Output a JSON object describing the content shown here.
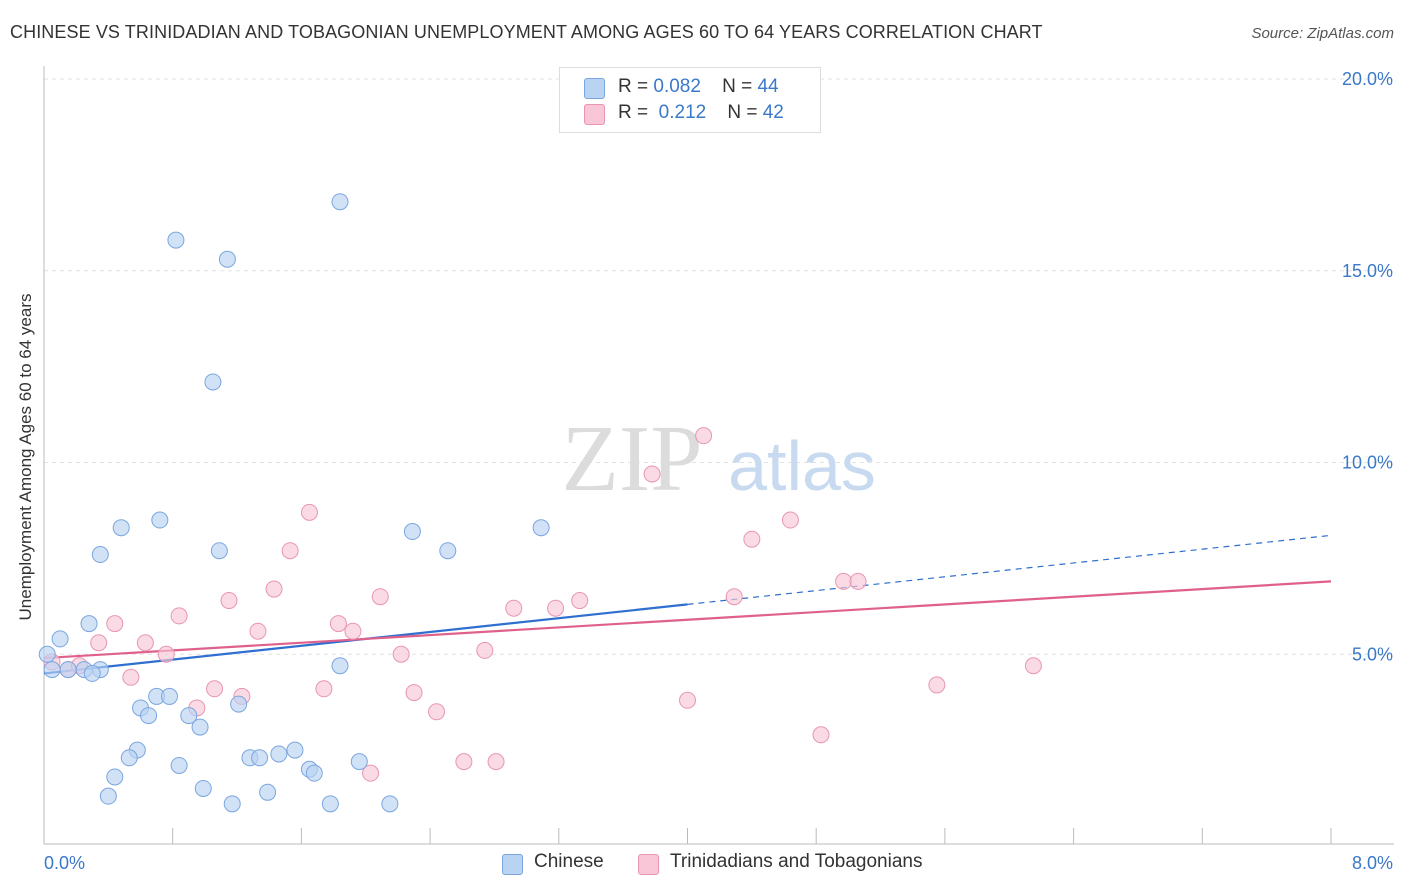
{
  "header": {
    "title": "CHINESE VS TRINIDADIAN AND TOBAGONIAN UNEMPLOYMENT AMONG AGES 60 TO 64 YEARS CORRELATION CHART",
    "source": "Source: ZipAtlas.com"
  },
  "watermark": {
    "zip": "ZIP",
    "atlas": "atlas"
  },
  "legend_top": {
    "rows": [
      {
        "r_label": "R =",
        "r_value": "0.082",
        "n_label": "N =",
        "n_value": "44"
      },
      {
        "r_label": "R =",
        "r_value": "0.212",
        "n_label": "N =",
        "n_value": "42"
      }
    ]
  },
  "legend_bottom": {
    "items": [
      "Chinese",
      "Trinidadians and Tobagonians"
    ]
  },
  "colors": {
    "chinese_fill": "#b9d3f2",
    "chinese_stroke": "#7aa6de",
    "chinese_line": "#2f6fcf",
    "trin_fill": "#f8c6d6",
    "trin_stroke": "#e896b2",
    "trin_line": "#e0608c",
    "axis_text": "#3a78c8",
    "grid": "#e2e2e2"
  },
  "chart_data": {
    "type": "scatter",
    "title": "CHINESE VS TRINIDADIAN AND TOBAGONIAN UNEMPLOYMENT AMONG AGES 60 TO 64 YEARS CORRELATION CHART",
    "xlabel": "",
    "ylabel": "Unemployment Among Ages 60 to 64 years",
    "xlim": [
      0,
      8
    ],
    "ylim": [
      0,
      20
    ],
    "x_tick_labels": [
      "0.0%",
      "8.0%"
    ],
    "y_ticks": [
      5,
      10,
      15,
      20
    ],
    "y_tick_labels": [
      "5.0%",
      "10.0%",
      "15.0%",
      "20.0%"
    ],
    "grid": true,
    "legend": "top-center",
    "series": [
      {
        "name": "Chinese",
        "points": [
          [
            0.02,
            5.0
          ],
          [
            0.1,
            5.4
          ],
          [
            0.15,
            4.6
          ],
          [
            0.25,
            4.6
          ],
          [
            0.35,
            4.6
          ],
          [
            0.3,
            4.5
          ],
          [
            0.28,
            5.8
          ],
          [
            0.35,
            7.6
          ],
          [
            0.48,
            8.3
          ],
          [
            0.72,
            8.5
          ],
          [
            0.82,
            15.8
          ],
          [
            1.14,
            15.3
          ],
          [
            1.05,
            12.1
          ],
          [
            1.09,
            7.7
          ],
          [
            1.84,
            16.8
          ],
          [
            2.29,
            8.2
          ],
          [
            2.51,
            7.7
          ],
          [
            3.09,
            8.3
          ],
          [
            1.84,
            4.7
          ],
          [
            0.7,
            3.9
          ],
          [
            0.78,
            3.9
          ],
          [
            0.6,
            3.6
          ],
          [
            0.65,
            3.4
          ],
          [
            0.9,
            3.4
          ],
          [
            0.97,
            3.1
          ],
          [
            1.21,
            3.7
          ],
          [
            0.58,
            2.5
          ],
          [
            0.53,
            2.3
          ],
          [
            0.84,
            2.1
          ],
          [
            1.28,
            2.3
          ],
          [
            1.34,
            2.3
          ],
          [
            1.46,
            2.4
          ],
          [
            1.56,
            2.5
          ],
          [
            1.65,
            2.0
          ],
          [
            1.68,
            1.9
          ],
          [
            1.96,
            2.2
          ],
          [
            0.44,
            1.8
          ],
          [
            0.4,
            1.3
          ],
          [
            0.99,
            1.5
          ],
          [
            1.17,
            1.1
          ],
          [
            1.39,
            1.4
          ],
          [
            1.78,
            1.1
          ],
          [
            2.15,
            1.1
          ],
          [
            0.05,
            4.6
          ]
        ],
        "trend": {
          "x": [
            0,
            4.0
          ],
          "y": [
            4.5,
            6.3
          ],
          "dashed_extension": {
            "x": [
              4.0,
              8.0
            ],
            "y": [
              6.3,
              8.1
            ]
          }
        }
      },
      {
        "name": "Trinidadians and Tobagonians",
        "points": [
          [
            0.05,
            4.8
          ],
          [
            0.15,
            4.6
          ],
          [
            0.22,
            4.7
          ],
          [
            0.34,
            5.3
          ],
          [
            0.44,
            5.8
          ],
          [
            0.54,
            4.4
          ],
          [
            0.63,
            5.3
          ],
          [
            0.76,
            5.0
          ],
          [
            0.84,
            6.0
          ],
          [
            0.95,
            3.6
          ],
          [
            1.06,
            4.1
          ],
          [
            1.15,
            6.4
          ],
          [
            1.23,
            3.9
          ],
          [
            1.33,
            5.6
          ],
          [
            1.43,
            6.7
          ],
          [
            1.53,
            7.7
          ],
          [
            1.65,
            8.7
          ],
          [
            1.74,
            4.1
          ],
          [
            1.83,
            5.8
          ],
          [
            1.92,
            5.6
          ],
          [
            2.03,
            1.9
          ],
          [
            2.09,
            6.5
          ],
          [
            2.22,
            5.0
          ],
          [
            2.3,
            4.0
          ],
          [
            2.44,
            3.5
          ],
          [
            2.61,
            2.2
          ],
          [
            2.74,
            5.1
          ],
          [
            2.81,
            2.2
          ],
          [
            2.92,
            6.2
          ],
          [
            3.18,
            6.2
          ],
          [
            3.33,
            6.4
          ],
          [
            3.78,
            9.7
          ],
          [
            4.0,
            3.8
          ],
          [
            4.1,
            10.7
          ],
          [
            4.29,
            6.5
          ],
          [
            4.4,
            8.0
          ],
          [
            4.64,
            8.5
          ],
          [
            4.83,
            2.9
          ],
          [
            4.97,
            6.9
          ],
          [
            5.06,
            6.9
          ],
          [
            5.55,
            4.2
          ],
          [
            6.15,
            4.7
          ]
        ],
        "trend": {
          "x": [
            0,
            8.0
          ],
          "y": [
            4.9,
            6.9
          ]
        }
      }
    ]
  }
}
